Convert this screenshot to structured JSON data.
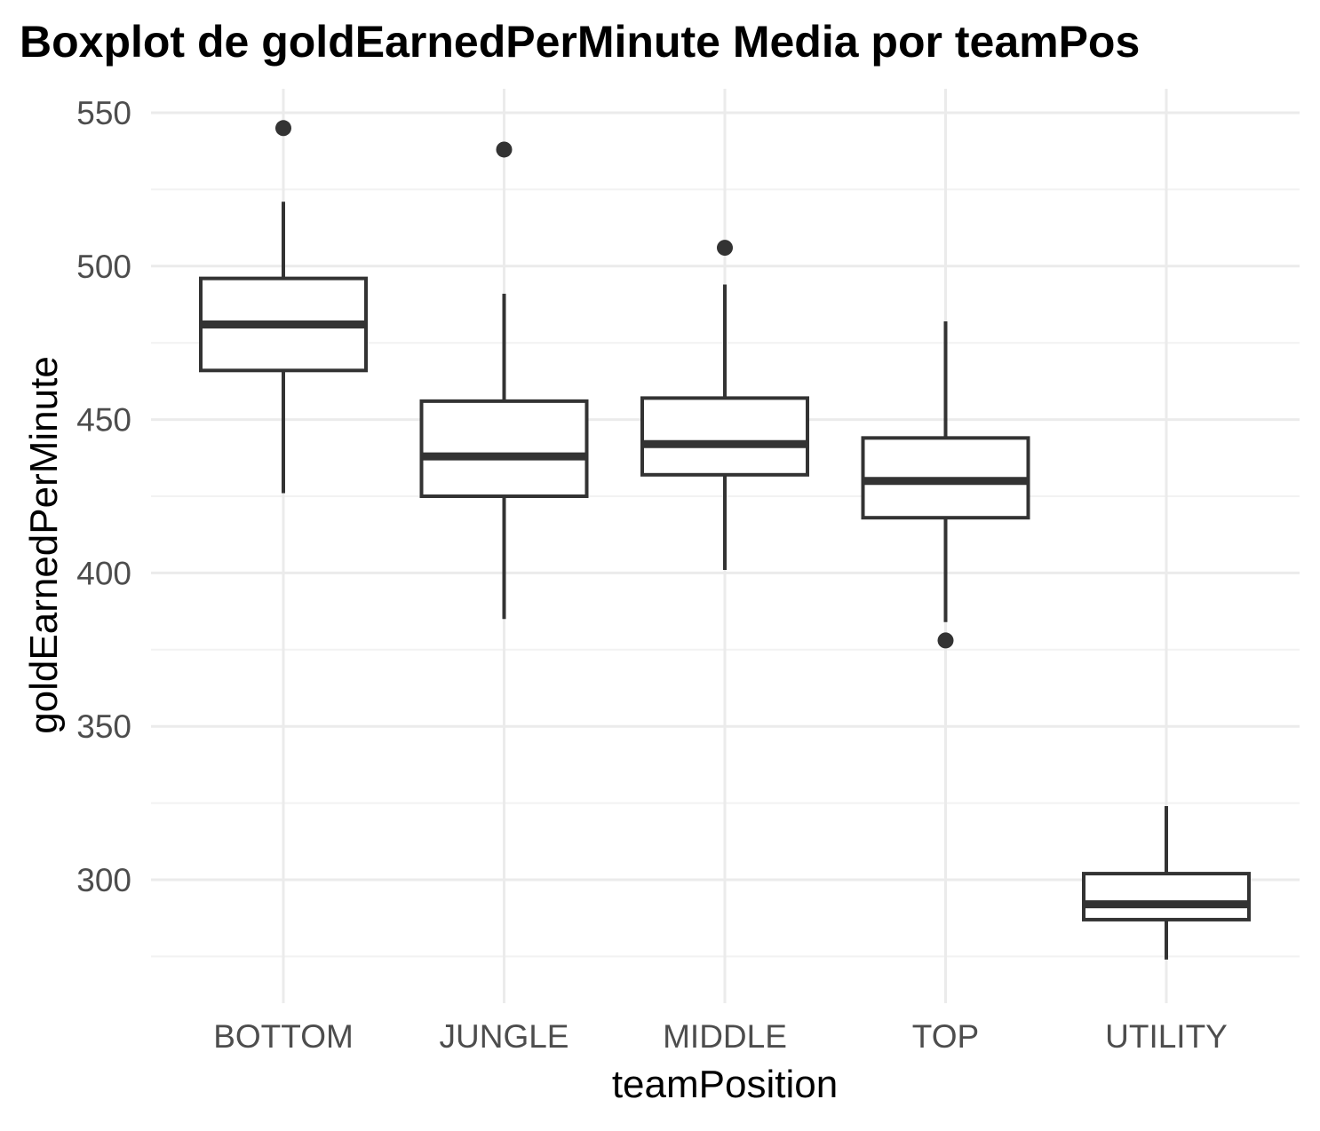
{
  "chart_data": {
    "type": "boxplot",
    "title": "Boxplot de goldEarnedPerMinute Media por teamPos",
    "xlabel": "teamPosition",
    "ylabel": "goldEarnedPerMinute",
    "ylim": [
      260,
      555
    ],
    "yticks": [
      300,
      350,
      400,
      450,
      500,
      550
    ],
    "grid": true,
    "categories": [
      "BOTTOM",
      "JUNGLE",
      "MIDDLE",
      "TOP",
      "UTILITY"
    ],
    "boxes": [
      {
        "category": "BOTTOM",
        "whisker_low": 426,
        "q1": 466,
        "median": 481,
        "q3": 496,
        "whisker_high": 521,
        "outliers": [
          545
        ]
      },
      {
        "category": "JUNGLE",
        "whisker_low": 385,
        "q1": 425,
        "median": 438,
        "q3": 456,
        "whisker_high": 491,
        "outliers": [
          538
        ]
      },
      {
        "category": "MIDDLE",
        "whisker_low": 401,
        "q1": 432,
        "median": 442,
        "q3": 457,
        "whisker_high": 494,
        "outliers": [
          506
        ]
      },
      {
        "category": "TOP",
        "whisker_low": 384,
        "q1": 418,
        "median": 430,
        "q3": 444,
        "whisker_high": 482,
        "outliers": [
          378
        ]
      },
      {
        "category": "UTILITY",
        "whisker_low": 274,
        "q1": 287,
        "median": 292,
        "q3": 302,
        "whisker_high": 324,
        "outliers": []
      }
    ],
    "colors": {
      "box_stroke": "#333333",
      "box_fill": "#ffffff",
      "outlier": "#333333",
      "grid_major": "#ebebeb",
      "grid_minor": "#f2f2f2",
      "tick_text": "#4d4d4d",
      "title_text": "#000000"
    }
  }
}
